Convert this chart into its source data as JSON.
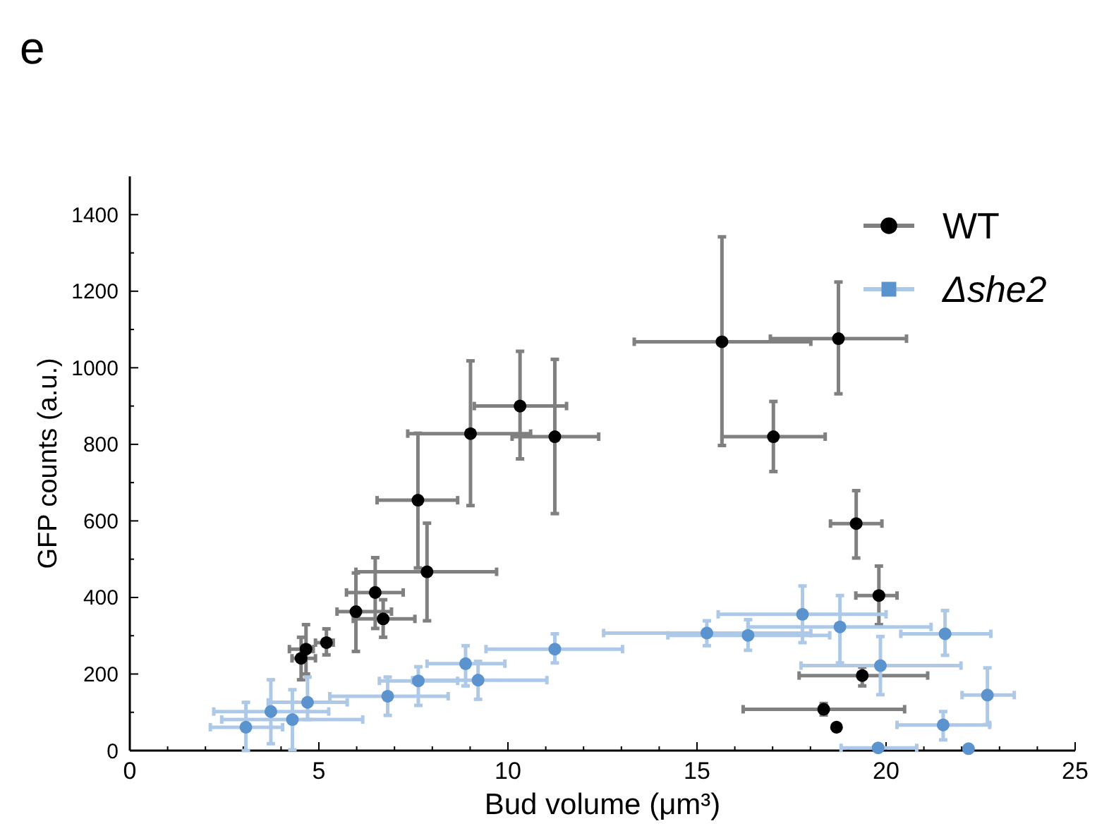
{
  "chart_data": {
    "type": "scatter",
    "title": "e",
    "xlabel": "Bud volume (μm³)",
    "ylabel": "GFP counts (a.u.)",
    "xlim": [
      0,
      25
    ],
    "ylim": [
      0,
      1500
    ],
    "xticks": [
      0,
      {
        "value": 1,
        "label": null
      },
      {
        "value": 2,
        "label": null
      },
      {
        "value": 3,
        "label": null
      },
      {
        "value": 4,
        "label": null
      },
      5,
      {
        "value": 6,
        "label": null
      },
      {
        "value": 7,
        "label": null
      },
      {
        "value": 8,
        "label": null
      },
      {
        "value": 9,
        "label": null
      },
      10,
      {
        "value": 11,
        "label": null
      },
      {
        "value": 12,
        "label": null
      },
      {
        "value": 13,
        "label": null
      },
      {
        "value": 14,
        "label": null
      },
      15,
      {
        "value": 16,
        "label": null
      },
      {
        "value": 17,
        "label": null
      },
      {
        "value": 18,
        "label": null
      },
      {
        "value": 19,
        "label": null
      },
      20,
      {
        "value": 21,
        "label": null
      },
      {
        "value": 22,
        "label": null
      },
      {
        "value": 23,
        "label": null
      },
      {
        "value": 24,
        "label": null
      },
      25
    ],
    "yticks": [
      0,
      {
        "value": 100,
        "label": null
      },
      200,
      {
        "value": 300,
        "label": null
      },
      400,
      {
        "value": 500,
        "label": null
      },
      600,
      {
        "value": 700,
        "label": null
      },
      800,
      {
        "value": 900,
        "label": null
      },
      1000,
      {
        "value": 1100,
        "label": null
      },
      1200,
      {
        "value": 1300,
        "label": null
      },
      1400
    ],
    "grid": false,
    "legend": "top right",
    "marker": "circle",
    "series": [
      {
        "name": "WT",
        "color": "#000000",
        "x": [
          4.53,
          4.66,
          5.2,
          5.98,
          6.49,
          6.7,
          7.62,
          7.86,
          9.01,
          10.32,
          11.24,
          15.66,
          18.74,
          17.02,
          19.21,
          19.81,
          19.37,
          18.35,
          18.69
        ],
        "values": [
          241,
          265,
          282,
          363,
          413,
          344,
          654,
          467,
          828,
          900,
          820,
          1068,
          1076,
          820,
          593,
          405,
          196,
          108,
          61
        ],
        "errors": [
          [
            185,
            296
          ],
          [
            200,
            329
          ],
          [
            250,
            318
          ],
          [
            259,
            464
          ],
          [
            319,
            504
          ],
          [
            296,
            394
          ],
          [
            477,
            829
          ],
          [
            339,
            594
          ],
          [
            640,
            1018
          ],
          [
            762,
            1043
          ],
          [
            619,
            1022
          ],
          [
            797,
            1342
          ],
          [
            932,
            1224
          ],
          [
            729,
            912
          ],
          [
            503,
            679
          ],
          [
            329,
            482
          ],
          [
            169,
            218
          ],
          [
            93,
            123
          ],
          null
        ],
        "xerrors": [
          [
            4.29,
            4.91
          ],
          [
            4.22,
            4.85
          ],
          [
            4.91,
            5.38
          ],
          [
            5.48,
            6.92
          ],
          [
            5.73,
            7.23
          ],
          [
            5.91,
            7.54
          ],
          [
            6.54,
            8.67
          ],
          [
            5.98,
            9.7
          ],
          [
            7.35,
            10.6
          ],
          [
            9.11,
            11.55
          ],
          [
            10.11,
            12.4
          ],
          [
            13.34,
            18.01
          ],
          [
            16.94,
            20.54
          ],
          [
            15.66,
            18.39
          ],
          [
            18.53,
            19.89
          ],
          [
            19.2,
            20.29
          ],
          [
            17.7,
            21.1
          ],
          [
            16.22,
            20.49
          ],
          null
        ]
      },
      {
        "name": "Δshe2",
        "color": "#5b93cf",
        "x": [
          3.07,
          3.73,
          4.3,
          4.7,
          6.82,
          7.63,
          8.88,
          9.21,
          11.24,
          15.26,
          16.35,
          17.79,
          18.78,
          21.56,
          19.85,
          22.68,
          21.51,
          19.79,
          22.18
        ],
        "values": [
          61,
          102,
          81,
          126,
          142,
          182,
          227,
          184,
          265,
          307,
          301,
          356,
          323,
          305,
          222,
          145,
          67,
          7,
          5
        ],
        "errors": [
          [
            0,
            126
          ],
          [
            18,
            185
          ],
          [
            2,
            159
          ],
          [
            81,
            192
          ],
          [
            92,
            192
          ],
          [
            118,
            219
          ],
          [
            169,
            274
          ],
          [
            134,
            233
          ],
          [
            229,
            305
          ],
          [
            274,
            339
          ],
          [
            262,
            342
          ],
          [
            282,
            430
          ],
          [
            229,
            405
          ],
          [
            249,
            366
          ],
          [
            146,
            298
          ],
          [
            68,
            216
          ],
          [
            28,
            102
          ],
          null,
          null
        ],
        "xerrors": [
          [
            2.13,
            4.04
          ],
          [
            2.22,
            5.26
          ],
          [
            2.43,
            6.16
          ],
          [
            3.66,
            5.75
          ],
          [
            5.29,
            8.42
          ],
          [
            6.6,
            8.67
          ],
          [
            7.86,
            9.92
          ],
          [
            7.48,
            11.03
          ],
          [
            9.42,
            13.03
          ],
          [
            12.53,
            18.01
          ],
          [
            14.23,
            18.51
          ],
          [
            15.56,
            20.0
          ],
          [
            16.35,
            21.19
          ],
          [
            20.39,
            22.77
          ],
          [
            17.75,
            21.98
          ],
          [
            22.01,
            23.39
          ],
          [
            20.29,
            22.74
          ],
          [
            18.81,
            20.81
          ],
          null
        ]
      }
    ]
  }
}
